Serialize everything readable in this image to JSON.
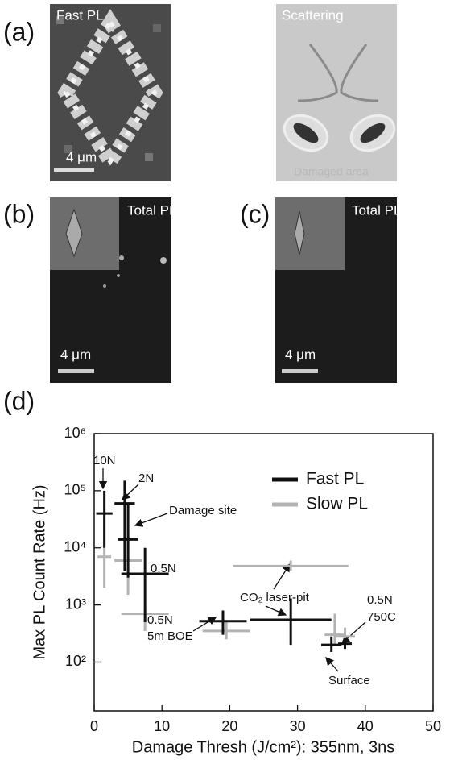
{
  "panel_a": {
    "label": "(a)",
    "left_title": "Fast PL",
    "left_scale": "4 μm",
    "right_title": "Scattering",
    "right_caption": "Damaged area"
  },
  "panel_b": {
    "label": "(b)",
    "title": "Total PL",
    "scale": "4 μm"
  },
  "panel_c": {
    "label": "(c)",
    "title": "Total PL",
    "scale": "4 μm"
  },
  "chart_data": {
    "type": "errorbar",
    "label": "(d)",
    "xlabel": "Damage Thresh (J/cm²): 355nm, 3ns",
    "ylabel": "Max PL Count Rate (Hz)",
    "xlim": [
      0,
      50
    ],
    "xticks": [
      0,
      10,
      20,
      30,
      40,
      50
    ],
    "ylim": [
      14,
      1000000
    ],
    "log_y": true,
    "yticks": [
      {
        "value": 100,
        "label": "10²"
      },
      {
        "value": 1000,
        "label": "10³"
      },
      {
        "value": 10000,
        "label": "10⁴"
      },
      {
        "value": 100000,
        "label": "10⁵"
      },
      {
        "value": 1000000,
        "label": "10⁶"
      }
    ],
    "legend": "upper right",
    "series": [
      {
        "name": "Fast PL",
        "color": "#111111",
        "x": [
          1.5,
          4.5,
          5,
          7.5,
          19,
          29,
          35,
          37
        ],
        "x_err": [
          1.2,
          1.5,
          1.5,
          3.5,
          3.5,
          6,
          1.5,
          1
        ],
        "values": [
          40000,
          60000,
          14000,
          3500,
          520,
          550,
          200,
          210
        ],
        "y_low": [
          10000,
          4000,
          3000,
          500,
          300,
          200,
          150,
          170
        ],
        "y_high": [
          100000,
          150000,
          60000,
          10000,
          800,
          1300,
          280,
          260
        ]
      },
      {
        "name": "Slow PL",
        "color": "#b3b3b3",
        "x": [
          1.5,
          5,
          7.5,
          19.5,
          29,
          35.5,
          37
        ],
        "x_err": [
          1,
          2,
          3.5,
          3.5,
          8.5,
          1.5,
          1.5
        ],
        "values": [
          7000,
          6000,
          700,
          350,
          4800,
          300,
          280
        ],
        "y_low": [
          2000,
          1500,
          350,
          250,
          4000,
          200,
          200
        ],
        "y_high": [
          10000,
          20000,
          800,
          500,
          6000,
          700,
          400
        ]
      }
    ],
    "annotations": [
      "10N",
      "2N",
      "Damage site",
      "0.5N",
      "0.5N",
      "5m BOE",
      "CO₂ laser-pit",
      "0.5N",
      "750C",
      "Surface"
    ]
  }
}
